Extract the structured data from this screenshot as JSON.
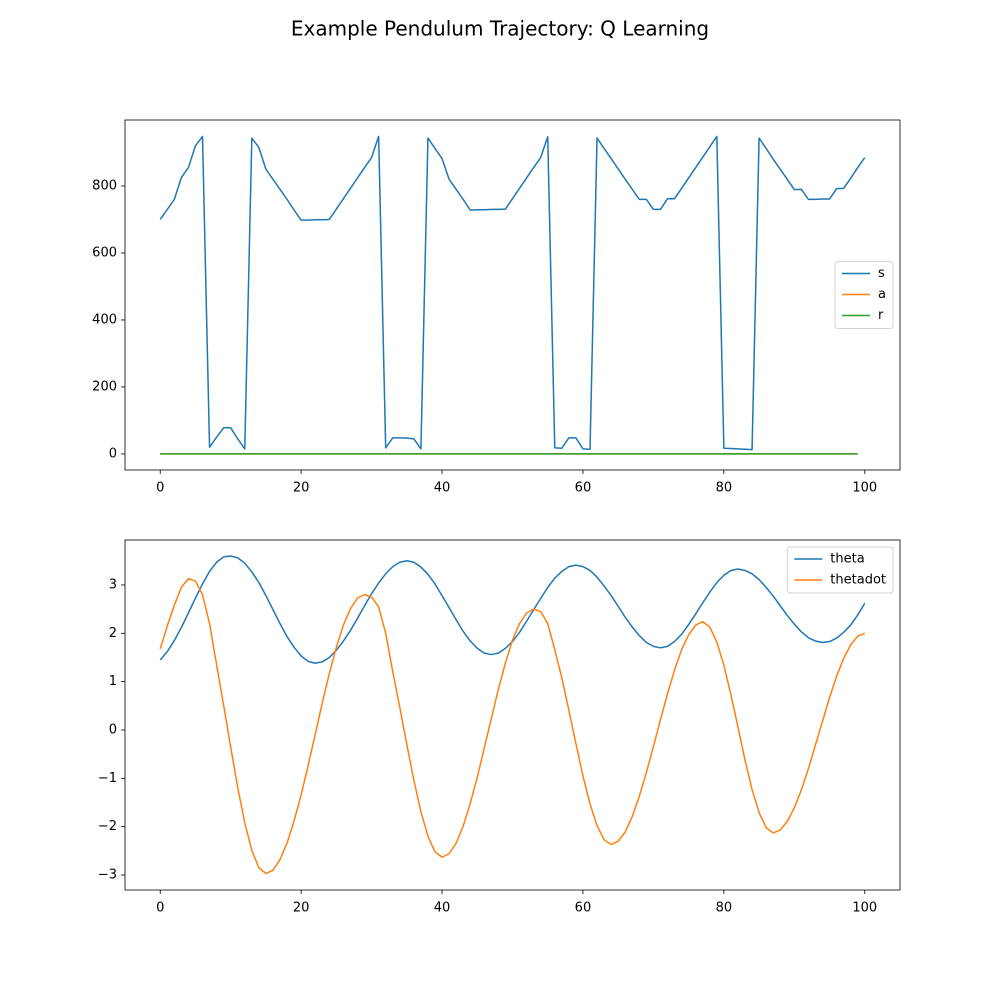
{
  "title": "Example Pendulum Trajectory: Q Learning",
  "chart_data": [
    {
      "type": "line",
      "x": [
        0,
        1,
        2,
        3,
        4,
        5,
        6,
        7,
        8,
        9,
        10,
        11,
        12,
        13,
        14,
        15,
        16,
        17,
        18,
        19,
        20,
        21,
        22,
        23,
        24,
        25,
        26,
        27,
        28,
        29,
        30,
        31,
        32,
        33,
        34,
        35,
        36,
        37,
        38,
        39,
        40,
        41,
        42,
        43,
        44,
        45,
        46,
        47,
        48,
        49,
        50,
        51,
        52,
        53,
        54,
        55,
        56,
        57,
        58,
        59,
        60,
        61,
        62,
        63,
        64,
        65,
        66,
        67,
        68,
        69,
        70,
        71,
        72,
        73,
        74,
        75,
        76,
        77,
        78,
        79,
        80,
        81,
        82,
        83,
        84,
        85,
        86,
        87,
        88,
        89,
        90,
        91,
        92,
        93,
        94,
        95,
        96,
        97,
        98,
        99,
        100
      ],
      "series": [
        {
          "name": "s",
          "color": "#1f77b4",
          "values": [
            700,
            730,
            760,
            825,
            855,
            920,
            948,
            20,
            50,
            78,
            78,
            45,
            15,
            943,
            915,
            850,
            820,
            790,
            760,
            728,
            698,
            698,
            699,
            699,
            700,
            731,
            762,
            793,
            824,
            855,
            885,
            948,
            18,
            48,
            48,
            47,
            45,
            15,
            943,
            912,
            882,
            820,
            790,
            760,
            728,
            729,
            729,
            730,
            730,
            731,
            762,
            793,
            824,
            855,
            885,
            947,
            18,
            17,
            48,
            48,
            15,
            14,
            943,
            912,
            882,
            851,
            820,
            790,
            760,
            760,
            730,
            730,
            762,
            762,
            793,
            824,
            855,
            886,
            917,
            948,
            17,
            16,
            15,
            14,
            13,
            943,
            912,
            880,
            850,
            820,
            789,
            790,
            760,
            760,
            761,
            761,
            792,
            793,
            823,
            855,
            885
          ]
        },
        {
          "name": "a",
          "color": "#ff7f0e",
          "values": [
            0,
            0,
            0,
            0,
            0,
            0,
            0,
            0,
            0,
            0,
            0,
            0,
            0,
            0,
            0,
            0,
            0,
            0,
            0,
            0,
            0,
            0,
            0,
            0,
            0,
            0,
            0,
            0,
            0,
            0,
            0,
            0,
            0,
            0,
            0,
            0,
            0,
            0,
            0,
            0,
            0,
            0,
            0,
            0,
            0,
            0,
            0,
            0,
            0,
            0,
            0,
            0,
            0,
            0,
            0,
            0,
            0,
            0,
            0,
            0,
            0,
            0,
            0,
            0,
            0,
            0,
            0,
            0,
            0,
            0,
            0,
            0,
            0,
            0,
            0,
            0,
            0,
            0,
            0,
            0,
            0,
            0,
            0,
            0,
            0,
            0,
            0,
            0,
            0,
            0,
            0,
            0,
            0,
            0,
            0,
            0,
            0,
            0,
            0,
            0,
            null
          ]
        },
        {
          "name": "r",
          "color": "#2ca02c",
          "values": [
            0,
            0,
            0,
            0,
            0,
            0,
            0,
            0,
            0,
            0,
            0,
            0,
            0,
            0,
            0,
            0,
            0,
            0,
            0,
            0,
            0,
            0,
            0,
            0,
            0,
            0,
            0,
            0,
            0,
            0,
            0,
            0,
            0,
            0,
            0,
            0,
            0,
            0,
            0,
            0,
            0,
            0,
            0,
            0,
            0,
            0,
            0,
            0,
            0,
            0,
            0,
            0,
            0,
            0,
            0,
            0,
            0,
            0,
            0,
            0,
            0,
            0,
            0,
            0,
            0,
            0,
            0,
            0,
            0,
            0,
            0,
            0,
            0,
            0,
            0,
            0,
            0,
            0,
            0,
            0,
            0,
            0,
            0,
            0,
            0,
            0,
            0,
            0,
            0,
            0,
            0,
            0,
            0,
            0,
            0,
            0,
            0,
            0,
            0,
            0,
            null
          ]
        }
      ],
      "xlim": [
        -5,
        105
      ],
      "xticks": [
        0,
        20,
        40,
        60,
        80,
        100
      ],
      "ylim": [
        -48,
        997
      ],
      "yticks": [
        0,
        200,
        400,
        600,
        800
      ],
      "grid": false,
      "legend": "center right"
    },
    {
      "type": "line",
      "x": [
        0,
        1,
        2,
        3,
        4,
        5,
        6,
        7,
        8,
        9,
        10,
        11,
        12,
        13,
        14,
        15,
        16,
        17,
        18,
        19,
        20,
        21,
        22,
        23,
        24,
        25,
        26,
        27,
        28,
        29,
        30,
        31,
        32,
        33,
        34,
        35,
        36,
        37,
        38,
        39,
        40,
        41,
        42,
        43,
        44,
        45,
        46,
        47,
        48,
        49,
        50,
        51,
        52,
        53,
        54,
        55,
        56,
        57,
        58,
        59,
        60,
        61,
        62,
        63,
        64,
        65,
        66,
        67,
        68,
        69,
        70,
        71,
        72,
        73,
        74,
        75,
        76,
        77,
        78,
        79,
        80,
        81,
        82,
        83,
        84,
        85,
        86,
        87,
        88,
        89,
        90,
        91,
        92,
        93,
        94,
        95,
        96,
        97,
        98,
        99,
        100
      ],
      "series": [
        {
          "name": "theta",
          "color": "#1f77b4",
          "values": [
            1.45,
            1.62,
            1.85,
            2.12,
            2.42,
            2.73,
            3.02,
            3.28,
            3.47,
            3.58,
            3.6,
            3.56,
            3.45,
            3.27,
            3.05,
            2.78,
            2.49,
            2.2,
            1.93,
            1.71,
            1.53,
            1.42,
            1.38,
            1.41,
            1.5,
            1.65,
            1.84,
            2.06,
            2.31,
            2.57,
            2.82,
            3.04,
            3.23,
            3.38,
            3.47,
            3.5,
            3.47,
            3.37,
            3.22,
            3.02,
            2.78,
            2.53,
            2.28,
            2.04,
            1.84,
            1.69,
            1.59,
            1.56,
            1.59,
            1.69,
            1.83,
            2.02,
            2.25,
            2.49,
            2.72,
            2.95,
            3.14,
            3.28,
            3.38,
            3.41,
            3.38,
            3.3,
            3.16,
            2.98,
            2.78,
            2.56,
            2.33,
            2.13,
            1.95,
            1.81,
            1.73,
            1.7,
            1.73,
            1.83,
            1.98,
            2.18,
            2.4,
            2.63,
            2.85,
            3.05,
            3.2,
            3.3,
            3.33,
            3.3,
            3.23,
            3.11,
            2.95,
            2.77,
            2.57,
            2.37,
            2.19,
            2.03,
            1.91,
            1.84,
            1.81,
            1.83,
            1.9,
            2.02,
            2.17,
            2.38,
            2.62
          ]
        },
        {
          "name": "thetadot",
          "color": "#ff7f0e",
          "values": [
            1.68,
            2.15,
            2.58,
            2.95,
            3.13,
            3.08,
            2.8,
            2.2,
            1.35,
            0.51,
            -0.35,
            -1.19,
            -1.92,
            -2.49,
            -2.85,
            -2.97,
            -2.9,
            -2.68,
            -2.34,
            -1.88,
            -1.34,
            -0.73,
            -0.09,
            0.56,
            1.17,
            1.71,
            2.17,
            2.51,
            2.73,
            2.8,
            2.75,
            2.55,
            2.0,
            1.21,
            0.47,
            -0.3,
            -1.04,
            -1.69,
            -2.2,
            -2.52,
            -2.63,
            -2.56,
            -2.34,
            -1.99,
            -1.52,
            -0.98,
            -0.37,
            0.24,
            0.85,
            1.39,
            1.86,
            2.2,
            2.42,
            2.5,
            2.45,
            2.2,
            1.66,
            1.08,
            0.41,
            -0.28,
            -0.95,
            -1.53,
            -1.98,
            -2.27,
            -2.37,
            -2.3,
            -2.11,
            -1.79,
            -1.37,
            -0.88,
            -0.34,
            0.21,
            0.75,
            1.24,
            1.66,
            1.97,
            2.17,
            2.24,
            2.13,
            1.82,
            1.34,
            0.73,
            0.06,
            -0.62,
            -1.23,
            -1.71,
            -2.02,
            -2.13,
            -2.07,
            -1.89,
            -1.61,
            -1.24,
            -0.8,
            -0.31,
            0.18,
            0.67,
            1.11,
            1.48,
            1.76,
            1.94,
            2.0
          ]
        }
      ],
      "xlim": [
        -5,
        105
      ],
      "xticks": [
        0,
        20,
        40,
        60,
        80,
        100
      ],
      "ylim": [
        -3.31,
        3.93
      ],
      "yticks": [
        {
          "value": -3,
          "label": "−3"
        },
        {
          "value": -2,
          "label": "−2"
        },
        {
          "value": -1,
          "label": "−1"
        },
        0,
        1,
        2,
        3
      ],
      "grid": false,
      "legend": "upper right"
    }
  ]
}
